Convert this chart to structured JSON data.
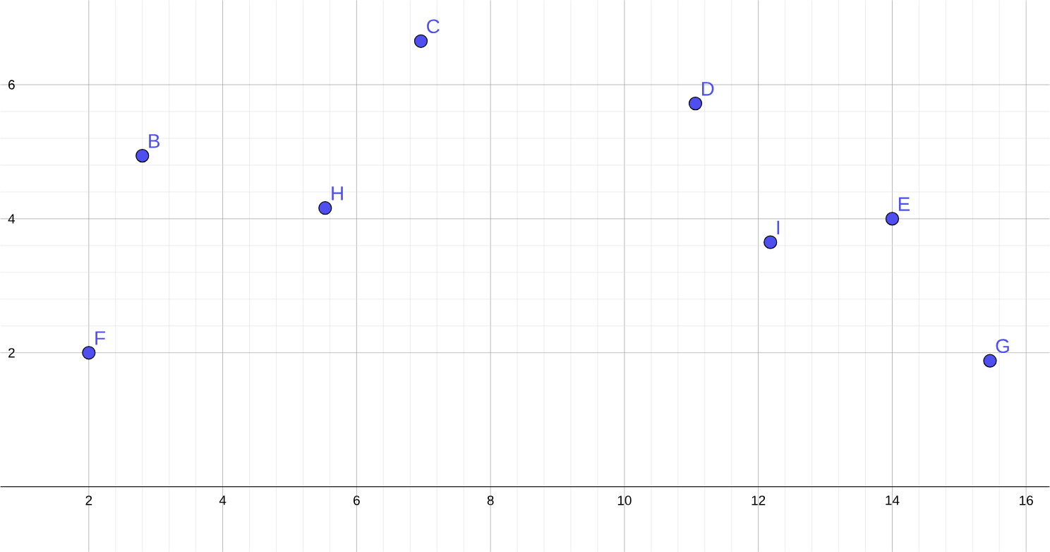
{
  "chart_data": {
    "type": "scatter",
    "x": [
      2,
      2.8,
      5.53,
      6.96,
      11.06,
      12.18,
      14,
      15.46
    ],
    "values": [
      2,
      4.94,
      4.16,
      6.65,
      5.72,
      3.65,
      4,
      1.88
    ],
    "color": "#4f4ff0",
    "grid": true,
    "xlim": [
      0.68,
      16.35
    ],
    "ylim": [
      -0.97,
      7.26
    ],
    "xticks": [
      2,
      4,
      6,
      8,
      10,
      12,
      14,
      16
    ],
    "yticks": [
      2,
      4,
      6
    ],
    "annotations": [
      {
        "text": "F",
        "x": 2,
        "y": 2
      },
      {
        "text": "B",
        "x": 2.8,
        "y": 4.94
      },
      {
        "text": "H",
        "x": 5.53,
        "y": 4.16
      },
      {
        "text": "C",
        "x": 6.96,
        "y": 6.65
      },
      {
        "text": "D",
        "x": 11.06,
        "y": 5.72
      },
      {
        "text": "I",
        "x": 12.18,
        "y": 3.65
      },
      {
        "text": "E",
        "x": 14,
        "y": 4
      },
      {
        "text": "G",
        "x": 15.46,
        "y": 1.88
      }
    ]
  }
}
